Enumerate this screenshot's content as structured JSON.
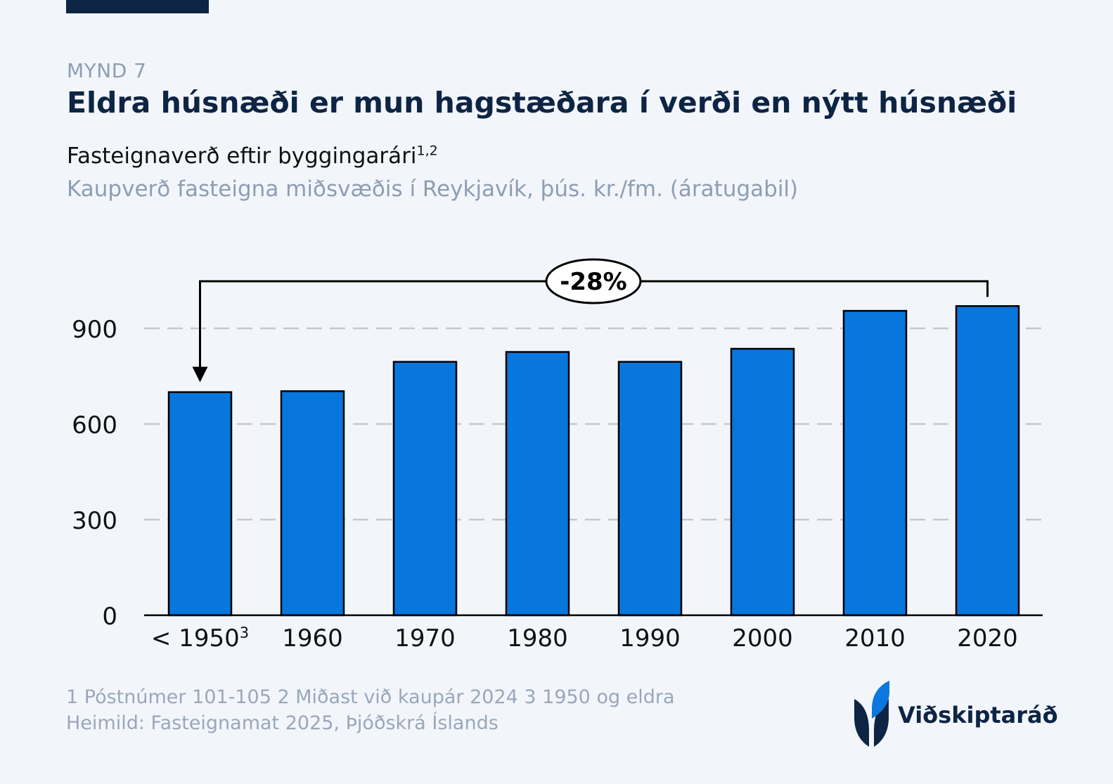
{
  "header": {
    "eyebrow": "MYND 7",
    "title": "Eldra húsnæði er mun hagstæðara í verði en nýtt húsnæði",
    "subtitle": "Fasteignaverð eftir byggingarári",
    "subtitle_sup": "1,2",
    "unit_line": "Kaupverð fasteigna miðsvæðis í Reykjavík, þús. kr./fm. (áratugabil)"
  },
  "chart_data": {
    "type": "bar",
    "categories": [
      "< 1950",
      "1960",
      "1970",
      "1980",
      "1990",
      "2000",
      "2010",
      "2020"
    ],
    "category_superscripts": [
      "3",
      "",
      "",
      "",
      "",
      "",
      "",
      ""
    ],
    "values": [
      700,
      703,
      795,
      826,
      795,
      836,
      955,
      970
    ],
    "ylim": [
      0,
      1050
    ],
    "yticks": [
      0,
      300,
      600,
      900
    ],
    "grid": true,
    "grid_style": "dashed",
    "bar_color": "#0777de",
    "annotation": {
      "label": "-28%",
      "from_category": "2020",
      "to_category": "< 1950"
    }
  },
  "footer": {
    "notes": "1 Póstnúmer 101-105 2 Miðast við kaupár 2024 3 1950 og eldra",
    "source": "Heimild: Fasteignamat 2025, Þjóðskrá Íslands"
  },
  "logo": {
    "text": "Viðskiptaráð",
    "icon": "leaf-logo-icon",
    "colors": {
      "dark": "#0d2444",
      "accent": "#0a78de"
    }
  }
}
